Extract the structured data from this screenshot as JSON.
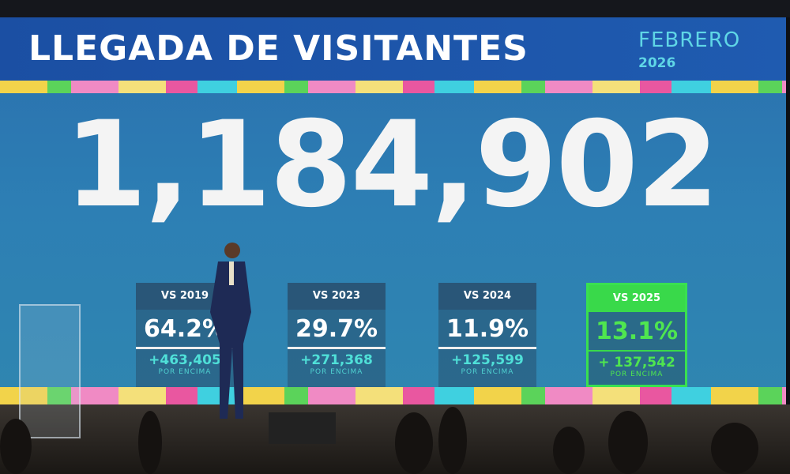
{
  "header": {
    "title": "LLEGADA DE VISITANTES",
    "month": "FEBRERO",
    "year": "2026"
  },
  "total": "1,184,902",
  "comparisons": [
    {
      "label": "VS 2019",
      "percent": "64.2%",
      "difference": "+463,405",
      "note": "POR ENCIMA"
    },
    {
      "label": "VS 2023",
      "percent": "29.7%",
      "difference": "+271,368",
      "note": "POR ENCIMA"
    },
    {
      "label": "VS 2024",
      "percent": "11.9%",
      "difference": "+125,599",
      "note": "POR ENCIMA"
    },
    {
      "label": "VS 2025",
      "percent": "13.1%",
      "difference": "+ 137,542",
      "note": "POR ENCIMA",
      "highlighted": true
    }
  ],
  "colors": {
    "header": "#1b4fa3",
    "screen": "#2d7fb4",
    "highlight": "#39d94a",
    "accent": "#5fd6e6"
  }
}
